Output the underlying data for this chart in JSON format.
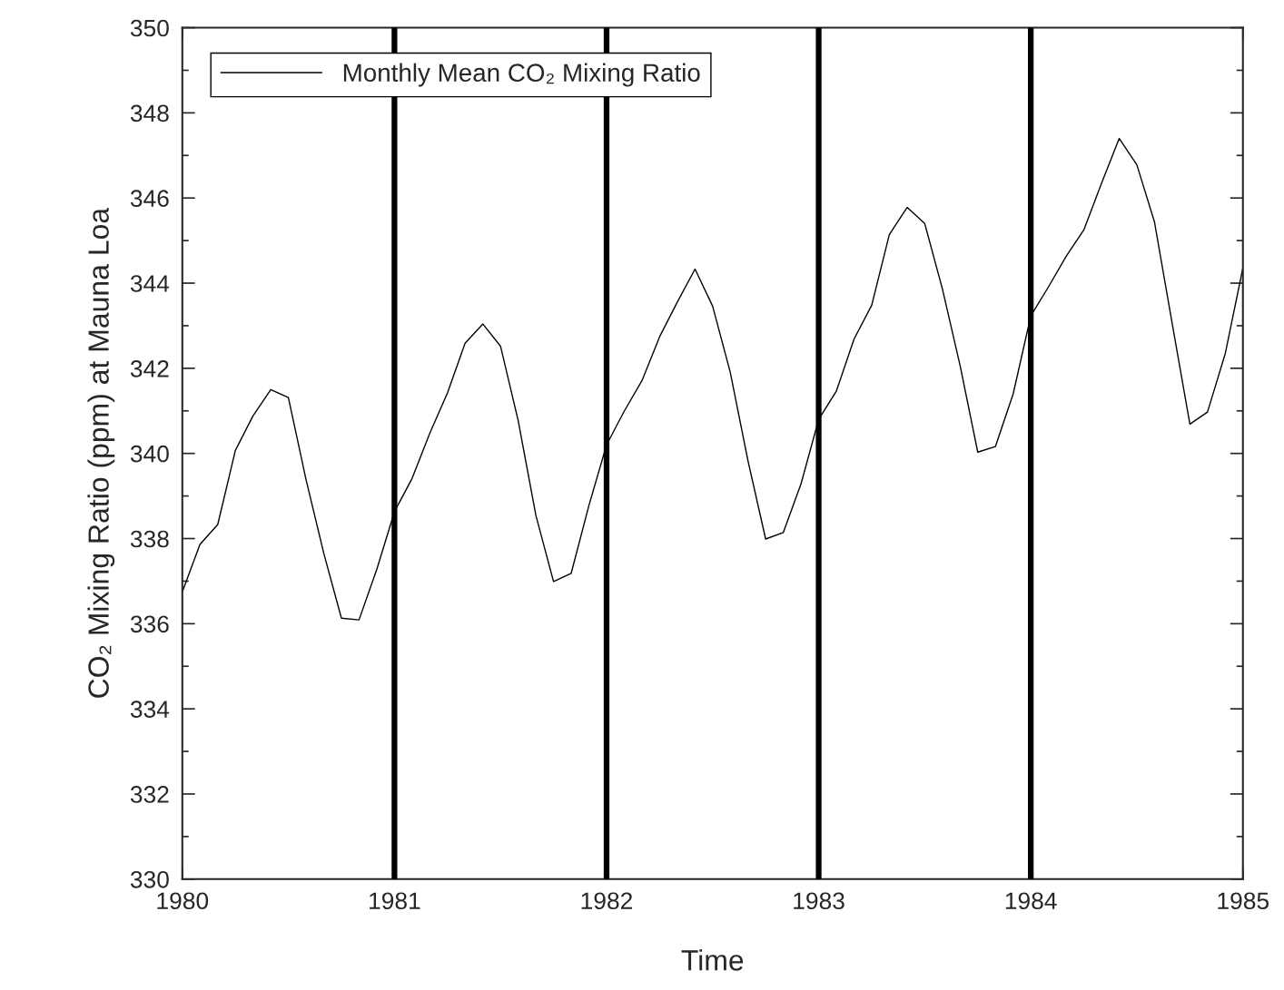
{
  "chart_data": {
    "type": "line",
    "xlabel": "Time",
    "ylabel": "CO₂ Mixing Ratio (ppm) at Mauna Loa",
    "x": [
      1980.0,
      1980.083,
      1980.167,
      1980.25,
      1980.333,
      1980.417,
      1980.5,
      1980.583,
      1980.667,
      1980.75,
      1980.833,
      1980.917,
      1981.0,
      1981.083,
      1981.167,
      1981.25,
      1981.333,
      1981.417,
      1981.5,
      1981.583,
      1981.667,
      1981.75,
      1981.833,
      1981.917,
      1982.0,
      1982.083,
      1982.167,
      1982.25,
      1982.333,
      1982.417,
      1982.5,
      1982.583,
      1982.667,
      1982.75,
      1982.833,
      1982.917,
      1983.0,
      1983.083,
      1983.167,
      1983.25,
      1983.333,
      1983.417,
      1983.5,
      1983.583,
      1983.667,
      1983.75,
      1983.833,
      1983.917,
      1984.0,
      1984.083,
      1984.167,
      1984.25,
      1984.333,
      1984.417,
      1984.5,
      1984.583,
      1984.667,
      1984.75,
      1984.833,
      1984.917,
      1985.0
    ],
    "series": [
      {
        "name": "Monthly Mean CO₂ Mixing Ratio",
        "color": "#000000",
        "values": [
          336.75,
          337.86,
          338.33,
          340.07,
          340.88,
          341.5,
          341.31,
          339.39,
          337.65,
          336.13,
          336.09,
          337.28,
          338.63,
          339.41,
          340.48,
          341.42,
          342.59,
          343.04,
          342.52,
          340.78,
          338.54,
          336.99,
          337.18,
          338.78,
          340.2,
          340.99,
          341.71,
          342.74,
          343.55,
          344.33,
          343.46,
          341.91,
          339.82,
          337.99,
          338.14,
          339.29,
          340.8,
          341.46,
          342.69,
          343.48,
          345.14,
          345.78,
          345.4,
          343.87,
          342.06,
          340.03,
          340.16,
          341.4,
          343.23,
          343.91,
          344.63,
          345.25,
          346.34,
          347.4,
          346.78,
          345.44,
          343.04,
          340.69,
          340.97,
          342.35,
          344.36
        ]
      }
    ],
    "xlim": [
      1980,
      1985
    ],
    "xticks": [
      1980,
      1981,
      1982,
      1983,
      1984,
      1985
    ],
    "ylim": [
      330,
      350
    ],
    "yticks": [
      330,
      332,
      334,
      336,
      338,
      340,
      342,
      344,
      346,
      348,
      350
    ],
    "ref_lines": [
      {
        "axis": "x",
        "value": 1981,
        "color": "#000000"
      },
      {
        "axis": "x",
        "value": 1982,
        "color": "#000000"
      },
      {
        "axis": "x",
        "value": 1983,
        "color": "#000000"
      },
      {
        "axis": "x",
        "value": 1984,
        "color": "#000000"
      }
    ],
    "legend": "top left",
    "grid": false,
    "marker": "none",
    "line_style": "solid"
  }
}
